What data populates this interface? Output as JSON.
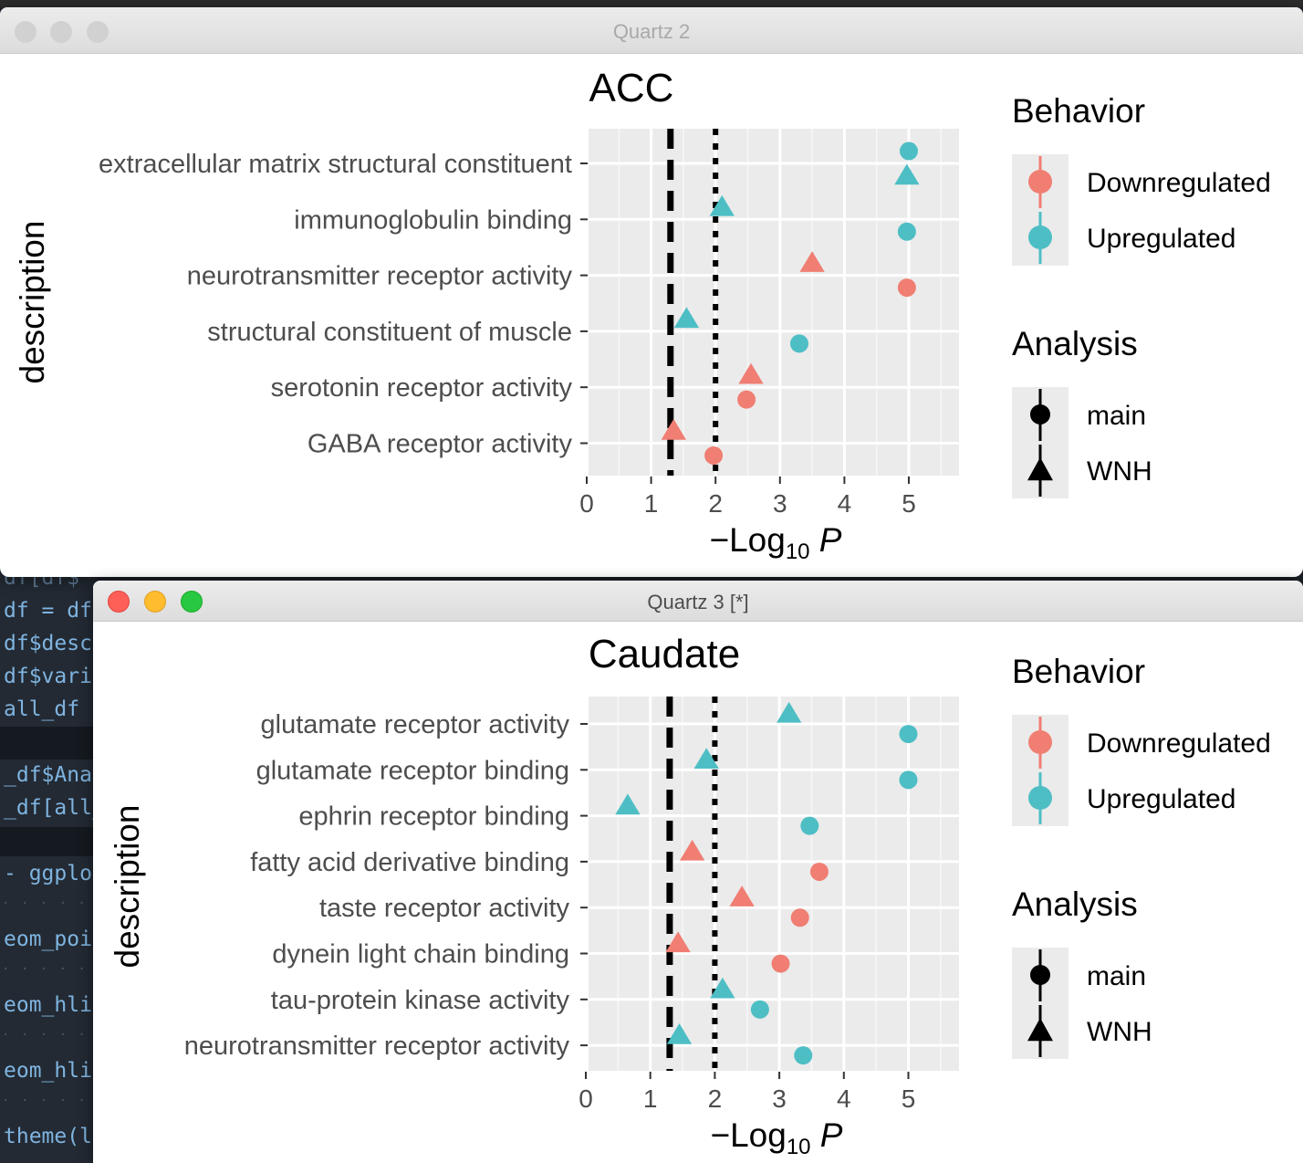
{
  "windows": [
    {
      "title": "Quartz 2",
      "active": false,
      "plot": {
        "title": "ACC",
        "ylabel": "description",
        "xlabel_prefix": "−Log",
        "xlabel_sub": "10",
        "xlabel_var": "P",
        "xticks": [
          "0",
          "1",
          "2",
          "3",
          "4",
          "5"
        ]
      },
      "chart_data": {
        "type": "scatter",
        "title": "ACC",
        "xlabel": "−Log10 P",
        "ylabel": "description",
        "xlim": [
          0,
          5.8
        ],
        "grid": true,
        "categories": [
          "GABA receptor activity",
          "serotonin receptor activity",
          "structural constituent of muscle",
          "neurotransmitter receptor activity",
          "immunoglobulin binding",
          "extracellular matrix structural constituent"
        ],
        "vlines": [
          {
            "x": 1.3,
            "style": "dashed"
          },
          {
            "x": 2.0,
            "style": "dotted"
          }
        ],
        "points": [
          {
            "category": "extracellular matrix structural constituent",
            "x": 5.0,
            "behavior": "Upregulated",
            "analysis": "main"
          },
          {
            "category": "extracellular matrix structural constituent",
            "x": 4.97,
            "behavior": "Upregulated",
            "analysis": "WNH"
          },
          {
            "category": "immunoglobulin binding",
            "x": 2.1,
            "behavior": "Upregulated",
            "analysis": "WNH"
          },
          {
            "category": "immunoglobulin binding",
            "x": 4.97,
            "behavior": "Upregulated",
            "analysis": "main"
          },
          {
            "category": "neurotransmitter receptor activity",
            "x": 3.5,
            "behavior": "Downregulated",
            "analysis": "WNH"
          },
          {
            "category": "neurotransmitter receptor activity",
            "x": 4.97,
            "behavior": "Downregulated",
            "analysis": "main"
          },
          {
            "category": "structural constituent of muscle",
            "x": 1.55,
            "behavior": "Upregulated",
            "analysis": "WNH"
          },
          {
            "category": "structural constituent of muscle",
            "x": 3.3,
            "behavior": "Upregulated",
            "analysis": "main"
          },
          {
            "category": "serotonin receptor activity",
            "x": 2.55,
            "behavior": "Downregulated",
            "analysis": "WNH"
          },
          {
            "category": "serotonin receptor activity",
            "x": 2.48,
            "behavior": "Downregulated",
            "analysis": "main"
          },
          {
            "category": "GABA receptor activity",
            "x": 1.35,
            "behavior": "Downregulated",
            "analysis": "WNH"
          },
          {
            "category": "GABA receptor activity",
            "x": 1.97,
            "behavior": "Downregulated",
            "analysis": "main"
          }
        ]
      },
      "legend": {
        "behavior_title": "Behavior",
        "behavior": [
          {
            "label": "Downregulated",
            "color": "#f07e73"
          },
          {
            "label": "Upregulated",
            "color": "#4ebec5"
          }
        ],
        "analysis_title": "Analysis",
        "analysis": [
          {
            "label": "main",
            "shape": "circle"
          },
          {
            "label": "WNH",
            "shape": "triangle"
          }
        ]
      }
    },
    {
      "title": "Quartz 3 [*]",
      "active": true,
      "plot": {
        "title": "Caudate",
        "ylabel": "description",
        "xlabel_prefix": "−Log",
        "xlabel_sub": "10",
        "xlabel_var": "P",
        "xticks": [
          "0",
          "1",
          "2",
          "3",
          "4",
          "5"
        ]
      },
      "chart_data": {
        "type": "scatter",
        "title": "Caudate",
        "xlabel": "−Log10 P",
        "ylabel": "description",
        "xlim": [
          0,
          5.8
        ],
        "grid": true,
        "categories": [
          "neurotransmitter receptor activity",
          "tau-protein kinase activity",
          "dynein light chain binding",
          "taste receptor activity",
          "fatty acid derivative binding",
          "ephrin receptor binding",
          "glutamate receptor binding",
          "glutamate receptor activity"
        ],
        "vlines": [
          {
            "x": 1.3,
            "style": "dashed"
          },
          {
            "x": 2.0,
            "style": "dotted"
          }
        ],
        "points": [
          {
            "category": "glutamate receptor activity",
            "x": 3.15,
            "behavior": "Upregulated",
            "analysis": "WNH"
          },
          {
            "category": "glutamate receptor activity",
            "x": 5.0,
            "behavior": "Upregulated",
            "analysis": "main"
          },
          {
            "category": "glutamate receptor binding",
            "x": 1.87,
            "behavior": "Upregulated",
            "analysis": "WNH"
          },
          {
            "category": "glutamate receptor binding",
            "x": 5.0,
            "behavior": "Upregulated",
            "analysis": "main"
          },
          {
            "category": "ephrin receptor binding",
            "x": 0.65,
            "behavior": "Upregulated",
            "analysis": "WNH"
          },
          {
            "category": "ephrin receptor binding",
            "x": 3.47,
            "behavior": "Upregulated",
            "analysis": "main"
          },
          {
            "category": "fatty acid derivative binding",
            "x": 1.65,
            "behavior": "Downregulated",
            "analysis": "WNH"
          },
          {
            "category": "fatty acid derivative binding",
            "x": 3.62,
            "behavior": "Downregulated",
            "analysis": "main"
          },
          {
            "category": "taste receptor activity",
            "x": 2.42,
            "behavior": "Downregulated",
            "analysis": "WNH"
          },
          {
            "category": "taste receptor activity",
            "x": 3.32,
            "behavior": "Downregulated",
            "analysis": "main"
          },
          {
            "category": "dynein light chain binding",
            "x": 1.43,
            "behavior": "Downregulated",
            "analysis": "WNH"
          },
          {
            "category": "dynein light chain binding",
            "x": 3.02,
            "behavior": "Downregulated",
            "analysis": "main"
          },
          {
            "category": "tau-protein kinase activity",
            "x": 2.12,
            "behavior": "Upregulated",
            "analysis": "WNH"
          },
          {
            "category": "tau-protein kinase activity",
            "x": 2.7,
            "behavior": "Upregulated",
            "analysis": "main"
          },
          {
            "category": "neurotransmitter receptor activity",
            "x": 1.45,
            "behavior": "Upregulated",
            "analysis": "WNH"
          },
          {
            "category": "neurotransmitter receptor activity",
            "x": 3.37,
            "behavior": "Upregulated",
            "analysis": "main"
          }
        ]
      },
      "legend": {
        "behavior_title": "Behavior",
        "behavior": [
          {
            "label": "Downregulated",
            "color": "#f07e73"
          },
          {
            "label": "Upregulated",
            "color": "#4ebec5"
          }
        ],
        "analysis_title": "Analysis",
        "analysis": [
          {
            "label": "main",
            "shape": "circle"
          },
          {
            "label": "WNH",
            "shape": "triangle"
          }
        ]
      }
    }
  ],
  "editor": {
    "lines": [
      "df[df$",
      "df = df",
      "df$desc",
      "df$vari",
      "all_df",
      "_df$Anal",
      "_df[all_",
      "- ggplot",
      "eom_poin",
      "eom_hlin",
      "eom_hlin",
      "theme(l"
    ]
  }
}
